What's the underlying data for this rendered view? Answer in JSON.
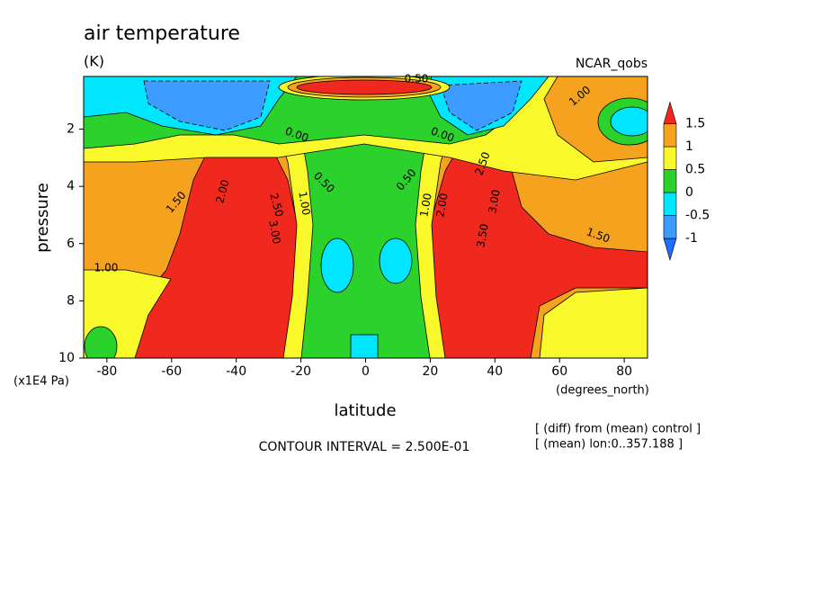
{
  "chart_data": {
    "type": "contour",
    "title": "air temperature",
    "subtitle": "(K)",
    "source": "NCAR_qobs",
    "y_label": "pressure",
    "y_unit": "(x1E4 Pa)",
    "x_label": "latitude",
    "x_unit": "(degrees_north)",
    "contour_interval": "CONTOUR INTERVAL = 2.500E-01",
    "notes": [
      "[ (diff) from (mean) control ]",
      "[ (mean) lon:0..357.188 ]"
    ],
    "xlim": [
      -87.2,
      87.2
    ],
    "xticks": [
      -80,
      -60,
      -40,
      -20,
      0,
      20,
      40,
      60,
      80
    ],
    "ylim": [
      10,
      0.16
    ],
    "yticks": [
      2,
      4,
      6,
      8,
      10
    ],
    "colorbar": {
      "levels": [
        -1,
        -0.5,
        0,
        0.5,
        1,
        1.5
      ],
      "colors": [
        "#1e6eff",
        "#3c9cff",
        "#00e6ff",
        "#2cd22c",
        "#f8f82a",
        "#f5a21e",
        "#f0281e"
      ]
    },
    "contour_labels": [
      {
        "value": 0.5,
        "label": "0.50"
      },
      {
        "value": 1,
        "label": "1.00"
      },
      {
        "value": 0,
        "label": "0.00"
      },
      {
        "value": 0,
        "label": "0.00"
      },
      {
        "value": 1.5,
        "label": "1.50"
      },
      {
        "value": 2,
        "label": "2.00"
      },
      {
        "value": 2.5,
        "label": "2.50"
      },
      {
        "value": 3,
        "label": "3.00"
      },
      {
        "value": 1,
        "label": "1.00"
      },
      {
        "value": 0.5,
        "label": "0.50"
      },
      {
        "value": 0.5,
        "label": "0.50"
      },
      {
        "value": 1,
        "label": "1.00"
      },
      {
        "value": 2,
        "label": "2.00"
      },
      {
        "value": 2.5,
        "label": "2.50"
      },
      {
        "value": 3,
        "label": "3.00"
      },
      {
        "value": 3.5,
        "label": "3.50"
      },
      {
        "value": 1.5,
        "label": "1.50"
      },
      {
        "value": 1,
        "label": "1.00"
      }
    ]
  }
}
